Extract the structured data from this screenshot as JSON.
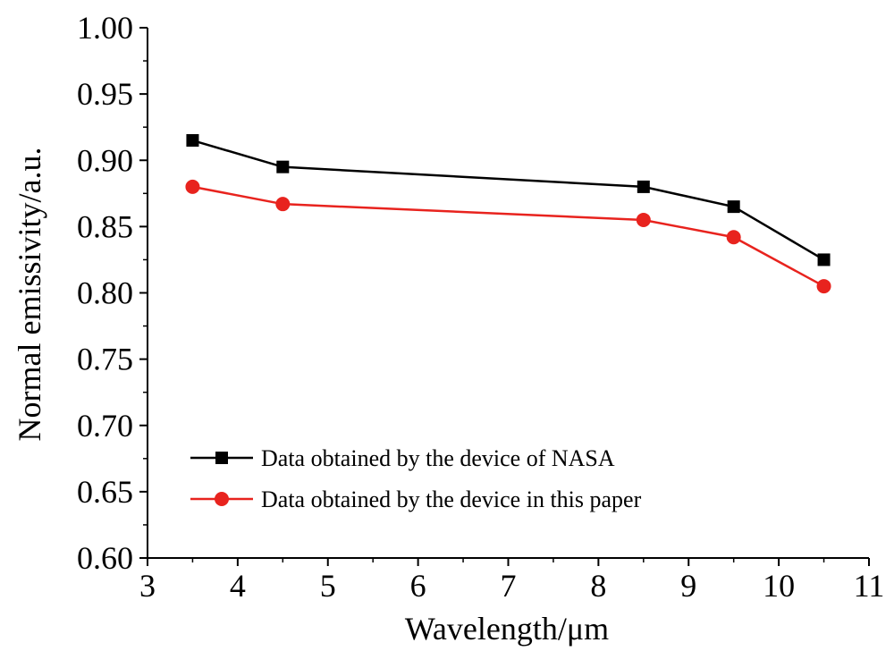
{
  "chart_data": {
    "type": "line",
    "title": "",
    "xlabel": "Wavelength/μm",
    "ylabel": "Normal emissivity/a.u.",
    "xlim": [
      3,
      11
    ],
    "ylim": [
      0.6,
      1.0
    ],
    "xticks": [
      "3",
      "4",
      "5",
      "6",
      "7",
      "8",
      "9",
      "10",
      "11"
    ],
    "yticks": [
      "0.60",
      "0.65",
      "0.70",
      "0.75",
      "0.80",
      "0.85",
      "0.90",
      "0.95",
      "1.00"
    ],
    "grid": false,
    "legend_position": "bottom-left",
    "x": [
      3.5,
      4.5,
      8.5,
      9.5,
      10.5
    ],
    "series": [
      {
        "name": "Data obtained by the device of NASA",
        "values": [
          0.915,
          0.895,
          0.88,
          0.865,
          0.825
        ],
        "color": "#000000",
        "marker": "square"
      },
      {
        "name": "Data obtained by the device in this paper",
        "values": [
          0.88,
          0.867,
          0.855,
          0.842,
          0.805
        ],
        "color": "#e8231e",
        "marker": "circle"
      }
    ]
  }
}
